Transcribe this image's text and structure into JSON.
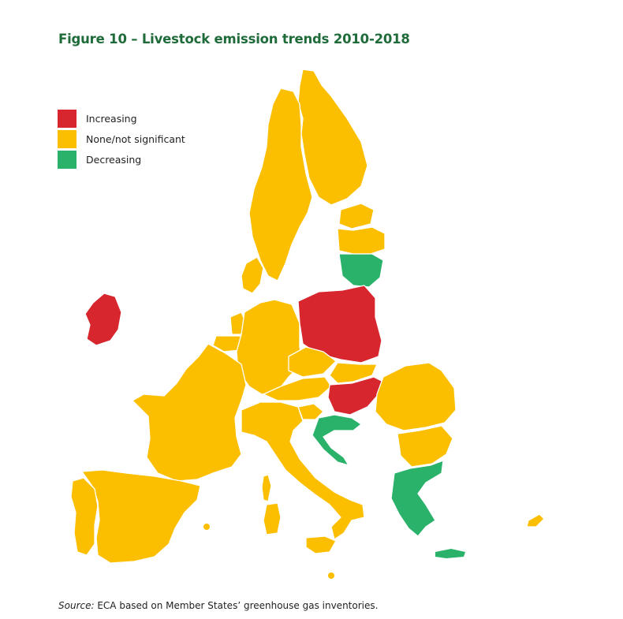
{
  "figure": {
    "title": "Figure 10 – Livestock emission trends 2010-2018"
  },
  "legend": {
    "items": [
      {
        "label": "Increasing",
        "color": "#d7262d"
      },
      {
        "label": "None/not significant",
        "color": "#fbbf00"
      },
      {
        "label": "Decreasing",
        "color": "#2ab26a"
      }
    ]
  },
  "source": {
    "prefix": "Source:",
    "text": " ECA based on Member States’ greenhouse gas inventories."
  },
  "colors": {
    "increasing": "#d7262d",
    "none": "#fbbf00",
    "decreasing": "#2ab26a"
  }
}
